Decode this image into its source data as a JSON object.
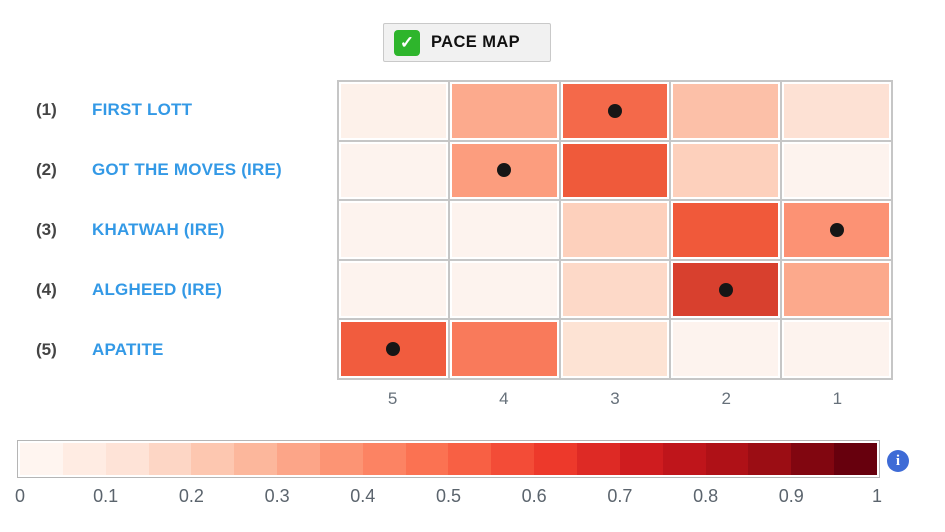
{
  "header": {
    "button_label": "PACE MAP"
  },
  "icons": {
    "check": "✓",
    "info": "i"
  },
  "colors": {
    "link_blue": "#3399e6",
    "check_green": "#2eb52c",
    "info_blue": "#3e6bd6",
    "grid_line": "#c6c6c6",
    "dot_black": "#161616"
  },
  "chart_data": {
    "type": "heatmap",
    "title": "PACE MAP",
    "x_labels": [
      "5",
      "4",
      "3",
      "2",
      "1"
    ],
    "value_range": [
      0,
      1
    ],
    "legend_position": "bottom",
    "rows": [
      {
        "rank": "(1)",
        "name": "FIRST LOTT",
        "values": [
          0.02,
          0.26,
          0.42,
          0.19,
          0.09
        ],
        "cell_colors": [
          "#fdf1ea",
          "#fcaa8d",
          "#f4694a",
          "#fcc0a8",
          "#fde1d4"
        ],
        "dot_col": 2
      },
      {
        "rank": "(2)",
        "name": "GOT THE MOVES (IRE)",
        "values": [
          0.02,
          0.29,
          0.46,
          0.13,
          0.02
        ],
        "cell_colors": [
          "#fdf3ee",
          "#fc9d7e",
          "#ef5a3b",
          "#fdd0bc",
          "#fdf3ee"
        ],
        "dot_col": 1
      },
      {
        "rank": "(3)",
        "name": "KHATWAH (IRE)",
        "values": [
          0.02,
          0.02,
          0.14,
          0.45,
          0.3
        ],
        "cell_colors": [
          "#fdf3ee",
          "#fdf3ee",
          "#fdd0bc",
          "#f0593a",
          "#fc9274"
        ],
        "dot_col": 4
      },
      {
        "rank": "(4)",
        "name": "ALGHEED (IRE)",
        "values": [
          0.02,
          0.02,
          0.11,
          0.56,
          0.26
        ],
        "cell_colors": [
          "#fdf3ee",
          "#fdf3ee",
          "#fdd9c8",
          "#d8402e",
          "#fca98c"
        ],
        "dot_col": 3
      },
      {
        "rank": "(5)",
        "name": "APATITE",
        "values": [
          0.44,
          0.37,
          0.08,
          0.02,
          0.02
        ],
        "cell_colors": [
          "#f15c3e",
          "#f97a5b",
          "#fde3d4",
          "#fdf3ee",
          "#fdf3ee"
        ],
        "dot_col": 0
      }
    ],
    "colorbar": {
      "tick_labels": [
        "0",
        "0.1",
        "0.2",
        "0.3",
        "0.4",
        "0.5",
        "0.6",
        "0.7",
        "0.8",
        "0.9",
        "1"
      ],
      "segment_colors": [
        "#fff5f0",
        "#ffece3",
        "#fee3d7",
        "#fdd6c5",
        "#fdc7b0",
        "#fcb79c",
        "#fca588",
        "#fc9474",
        "#fc8363",
        "#fb7252",
        "#f86044",
        "#f34c37",
        "#ed392b",
        "#de2a25",
        "#cf1c1f",
        "#bf151b",
        "#af1117",
        "#9b0d14",
        "#810610",
        "#67000d"
      ]
    }
  }
}
